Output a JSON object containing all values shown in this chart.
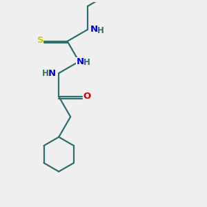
{
  "bg_color": "#efefef",
  "bond_color": "#2d6e6e",
  "bond_width": 1.6,
  "atom_colors": {
    "N": "#0000cc",
    "O": "#cc0000",
    "S": "#cccc00",
    "C": "#2d6e6e",
    "H": "#2d6e6e"
  },
  "figsize": [
    3.0,
    3.0
  ],
  "dpi": 100,
  "xlim": [
    0,
    10
  ],
  "ylim": [
    0,
    10
  ]
}
